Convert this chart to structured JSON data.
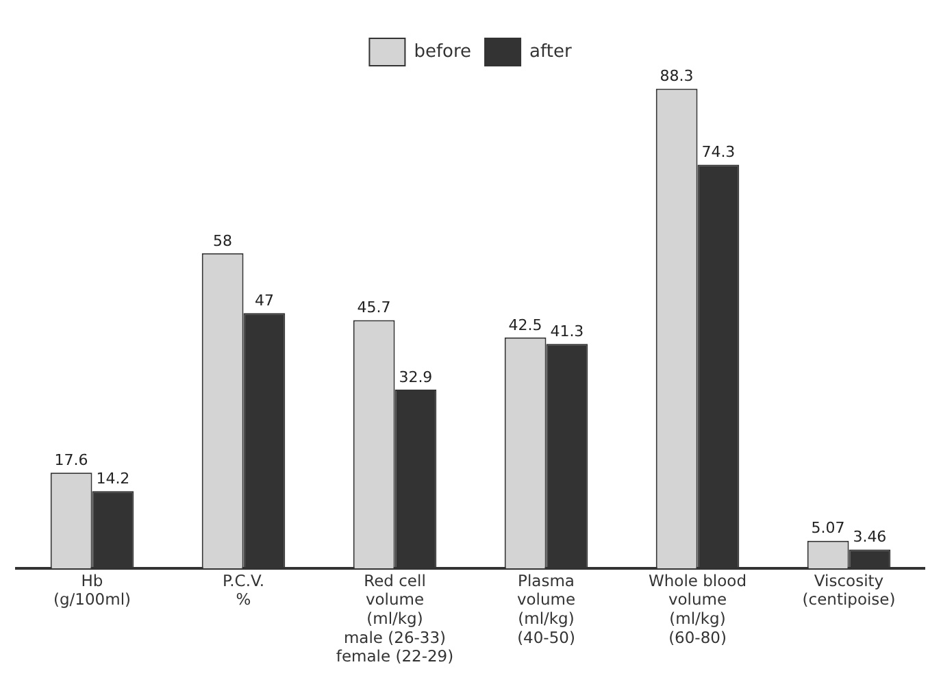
{
  "chart_data": {
    "type": "bar",
    "categories": [
      "Hb\n(g/100ml)",
      "P.C.V.\n%",
      "Red cell\nvolume\n(ml/kg)\nmale (26-33)\nfemale (22-29)",
      "Plasma\nvolume\n(ml/kg)\n(40-50)",
      "Whole blood\nvolume\n(ml/kg)\n(60-80)",
      "Viscosity\n(centipoise)"
    ],
    "series": [
      {
        "name": "before",
        "color": "#d4d4d4",
        "values": [
          17.6,
          58,
          45.7,
          42.5,
          88.3,
          5.07
        ]
      },
      {
        "name": "after",
        "color": "#333333",
        "values": [
          14.2,
          47,
          32.9,
          41.3,
          74.3,
          3.46
        ]
      }
    ],
    "data_labels": true,
    "legend": "top",
    "grid": false
  }
}
